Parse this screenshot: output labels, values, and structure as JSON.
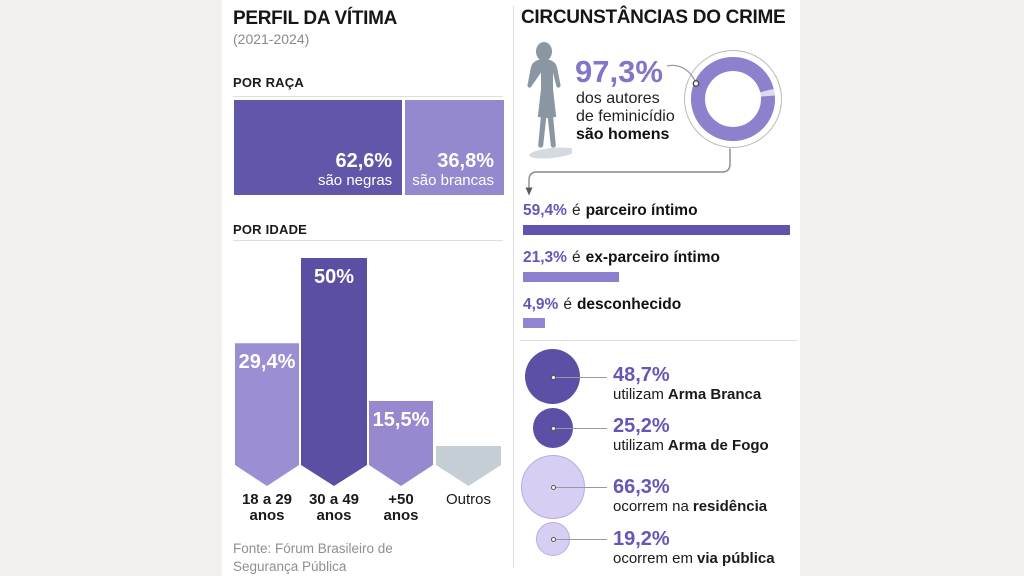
{
  "left_panel": {
    "title": "PERFIL DA VÍTIMA",
    "subtitle": "(2021-2024)",
    "section_race": "POR RAÇA",
    "section_age": "POR IDADE",
    "source": {
      "line1": "Fonte: Fórum Brasileiro de",
      "line2": "Segurança Pública"
    }
  },
  "right_panel": {
    "title": "CIRCUNSTÂNCIAS DO CRIME",
    "gender_stat": {
      "value": "97,3%",
      "line1": "dos autores",
      "line2": "de feminicídio",
      "line3": "são homens"
    }
  },
  "colors": {
    "background": "#f1f0ee",
    "panel": "#ffffff",
    "purple_dark": "#5b4fa6",
    "purple_mid": "#8d80cc",
    "purple_light": "#9c8ed2",
    "lavender": "#d7cff3",
    "gray_bar": "#c5ced4",
    "value_text": "#6457b6",
    "big_stat_text": "#8276c8",
    "text_dark": "#1a1a1a",
    "text_gray": "#8a8a8a",
    "silhouette": "#8a96a2"
  },
  "chart_data": [
    {
      "type": "bar",
      "subtype": "stacked-horizontal",
      "title": "POR RAÇA",
      "unit": "%",
      "segments": [
        {
          "label": "62,6%",
          "sublabel": "são negras",
          "value": 62.6,
          "color": "#6056aa"
        },
        {
          "label": "36,8%",
          "sublabel": "são brancas",
          "value": 36.8,
          "color": "#9488ce"
        }
      ]
    },
    {
      "type": "bar",
      "title": "POR IDADE",
      "unit": "%",
      "categories": [
        {
          "line1": "18 a 29",
          "line2": "anos"
        },
        {
          "line1": "30 a 49",
          "line2": "anos"
        },
        {
          "line1": "+50",
          "line2": "anos"
        },
        {
          "line1": "Outros",
          "line2": ""
        }
      ],
      "values": [
        29.4,
        50,
        15.5,
        null
      ],
      "labels": [
        "29,4%",
        "50%",
        "15,5%",
        ""
      ],
      "colors": [
        "#9c8ed2",
        "#5b4fa3",
        "#9689cf",
        "#c5ced4"
      ]
    },
    {
      "type": "bar",
      "subtype": "horizontal",
      "unit": "%",
      "items": [
        {
          "label": "59,4%",
          "connector": "é",
          "desc": "parceiro íntimo",
          "value": 59.4,
          "color": "#5f53ae"
        },
        {
          "label": "21,3%",
          "connector": "é",
          "desc": "ex-parceiro íntimo",
          "value": 21.3,
          "color": "#8c7fcd"
        },
        {
          "label": "4,9%",
          "connector": "é",
          "desc": "desconhecido",
          "value": 4.9,
          "color": "#9184d0"
        }
      ]
    },
    {
      "type": "bubble",
      "unit": "%",
      "items": [
        {
          "label": "48,7%",
          "prefix": "utilizam",
          "desc": "Arma Branca",
          "value": 48.7,
          "fill": "#5b4fa6",
          "stroke": ""
        },
        {
          "label": "25,2%",
          "prefix": "utilizam",
          "desc": "Arma de Fogo",
          "value": 25.2,
          "fill": "#5b4fa6",
          "stroke": ""
        },
        {
          "label": "66,3%",
          "prefix": "ocorrem na",
          "desc": "residência",
          "value": 66.3,
          "fill": "#d7cff3",
          "stroke": "#b7abe5"
        },
        {
          "label": "19,2%",
          "prefix": "ocorrem em",
          "desc": "via pública",
          "value": 19.2,
          "fill": "#d7cff3",
          "stroke": "#b7abe5"
        }
      ]
    },
    {
      "type": "donut",
      "label": "97,3%",
      "value": 97.3,
      "remainder": 2.7,
      "color": "#8d80cc",
      "desc": "dos autores de feminicídio são homens"
    }
  ]
}
